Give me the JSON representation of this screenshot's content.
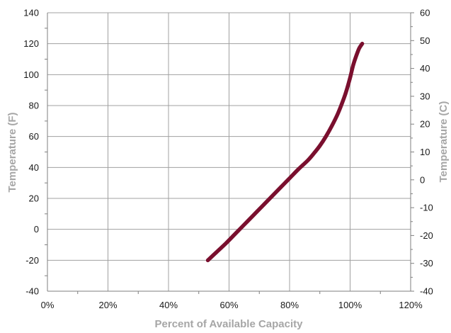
{
  "chart_data": {
    "type": "line",
    "xlabel": "Percent of Available Capacity",
    "ylabel": "Temperature (F)",
    "ylabel_right": "Temperature (C)",
    "x_ticks": [
      "0%",
      "20%",
      "40%",
      "60%",
      "80%",
      "100%",
      "120%"
    ],
    "xlim": [
      0,
      120
    ],
    "ylim": [
      -40,
      140
    ],
    "y_ticks": [
      "-40",
      "-20",
      "0",
      "20",
      "40",
      "60",
      "80",
      "100",
      "120",
      "140"
    ],
    "ylim_right": [
      -40,
      60
    ],
    "y_ticks_right": [
      "-40",
      "-30",
      "-20",
      "-10",
      "0",
      "10",
      "20",
      "30",
      "40",
      "50",
      "60"
    ],
    "grid": true,
    "color": "#7a0f2e",
    "series": [
      {
        "x": [
          53,
          56,
          59,
          62,
          65,
          68,
          71,
          74,
          77,
          80,
          83,
          86,
          88,
          90,
          92,
          94,
          96,
          98,
          99,
          100,
          101,
          102,
          103,
          104
        ],
        "y": [
          -20,
          -14.5,
          -9,
          -3,
          3,
          9,
          15,
          21,
          27,
          33,
          39,
          44.5,
          49,
          54,
          60,
          67,
          75,
          85,
          91,
          98,
          106,
          112,
          117,
          120
        ]
      }
    ]
  }
}
